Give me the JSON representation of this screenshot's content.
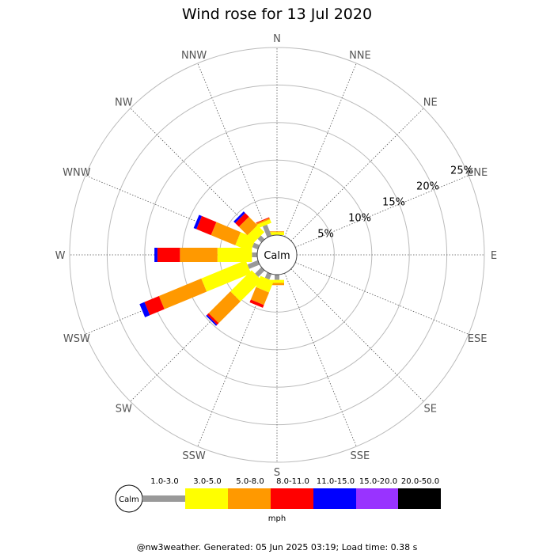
{
  "chart_data": {
    "type": "wind-rose",
    "title": "Wind rose for 13 Jul 2020",
    "center_label": "Calm",
    "directions": [
      "N",
      "NNE",
      "NE",
      "ENE",
      "E",
      "ESE",
      "SE",
      "SSE",
      "S",
      "SSW",
      "SW",
      "WSW",
      "W",
      "WNW",
      "NW",
      "NNW"
    ],
    "rings": [
      5,
      10,
      15,
      20,
      25
    ],
    "ring_labels": [
      "5%",
      "10%",
      "15%",
      "20%",
      "25%"
    ],
    "r_max": 25,
    "speed_bins": [
      "1.0-3.0",
      "3.0-5.0",
      "5.0-8.0",
      "8.0-11.0",
      "11.0-15.0",
      "15.0-20.0",
      "20.0-50.0"
    ],
    "speed_colors": [
      "#999999",
      "#ffff00",
      "#ff9900",
      "#ff0000",
      "#0000ff",
      "#9933ff",
      "#000000"
    ],
    "unit": "mph",
    "series": [
      {
        "direction": "N",
        "values": [
          0,
          0.4,
          0.1,
          0,
          0,
          0,
          0
        ]
      },
      {
        "direction": "S",
        "values": [
          0.7,
          0.4,
          0.3,
          0,
          0,
          0,
          0
        ]
      },
      {
        "direction": "SSW",
        "values": [
          0.8,
          1.6,
          1.8,
          0.4,
          0,
          0,
          0
        ]
      },
      {
        "direction": "SW",
        "values": [
          1.2,
          4.0,
          4.1,
          0.3,
          0.2,
          0,
          0
        ]
      },
      {
        "direction": "WSW",
        "values": [
          1.5,
          6.4,
          6.1,
          2.1,
          0.7,
          0,
          0
        ]
      },
      {
        "direction": "W",
        "values": [
          0.7,
          4.6,
          5.0,
          3.0,
          0.4,
          0,
          0
        ]
      },
      {
        "direction": "WNW",
        "values": [
          0.8,
          2.2,
          3.5,
          2.1,
          0.4,
          0,
          0
        ]
      },
      {
        "direction": "NW",
        "values": [
          0.7,
          1.3,
          1.6,
          0.7,
          0.3,
          0,
          0
        ]
      },
      {
        "direction": "NNW",
        "values": [
          1.6,
          0.5,
          0.2,
          0.1,
          0,
          0,
          0
        ]
      }
    ]
  },
  "footer": "@nw3weather. Generated: 05 Jun 2025 03:19; Load time: 0.38 s"
}
